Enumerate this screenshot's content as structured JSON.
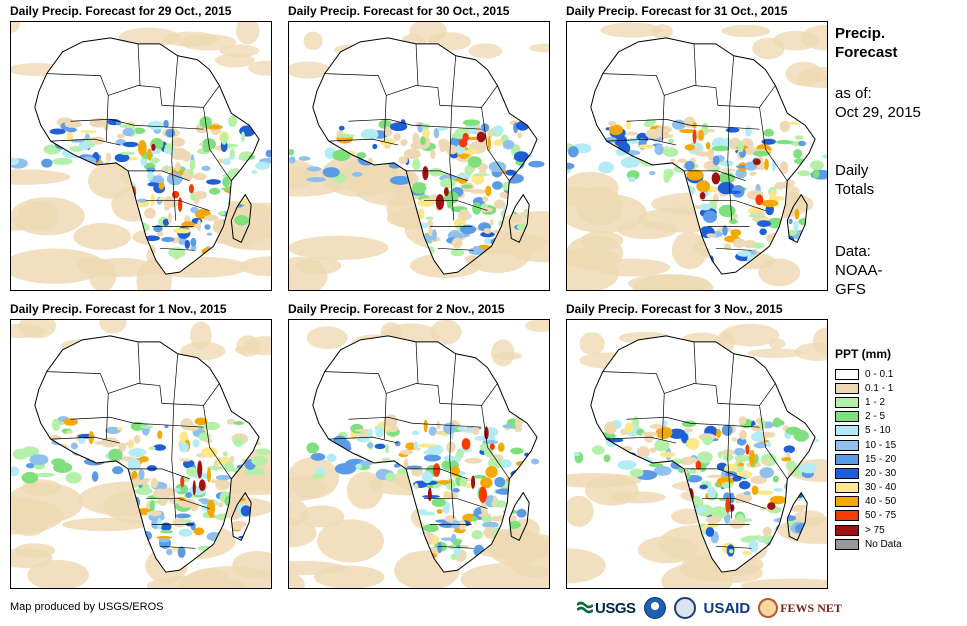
{
  "panels": [
    {
      "title": "Daily Precip. Forecast for 29 Oct., 2015",
      "seed": 11
    },
    {
      "title": "Daily Precip. Forecast for 30 Oct., 2015",
      "seed": 23
    },
    {
      "title": "Daily Precip. Forecast for 31 Oct., 2015",
      "seed": 37
    },
    {
      "title": "Daily Precip. Forecast for 1 Nov., 2015",
      "seed": 41
    },
    {
      "title": "Daily Precip. Forecast for 2 Nov., 2015",
      "seed": 53
    },
    {
      "title": "Daily Precip. Forecast for 3 Nov., 2015",
      "seed": 67
    }
  ],
  "side": {
    "title_line1": "Precip.",
    "title_line2": "Forecast",
    "asof_label": "as of:",
    "asof_date": "Oct 29, 2015",
    "totals_line1": "Daily",
    "totals_line2": "Totals",
    "data_label": "Data:",
    "data_line1": "NOAA-",
    "data_line2": "GFS"
  },
  "legend": {
    "title": "PPT (mm)",
    "items": [
      {
        "label": "0 - 0.1",
        "color": "#ffffff"
      },
      {
        "label": "0.1 - 1",
        "color": "#efd9b4"
      },
      {
        "label": "1 - 2",
        "color": "#b4f0a8"
      },
      {
        "label": "2 - 5",
        "color": "#7de07d"
      },
      {
        "label": "5 - 10",
        "color": "#b3ecf5"
      },
      {
        "label": "10 - 15",
        "color": "#8fc0ee"
      },
      {
        "label": "15 - 20",
        "color": "#5b9be6"
      },
      {
        "label": "20 - 30",
        "color": "#1f5fd6"
      },
      {
        "label": "30 - 40",
        "color": "#fbe88a"
      },
      {
        "label": "40 - 50",
        "color": "#f5a800"
      },
      {
        "label": "50 - 75",
        "color": "#f53c00"
      },
      {
        "label": "> 75",
        "color": "#a01010"
      },
      {
        "label": "No Data",
        "color": "#999999"
      }
    ]
  },
  "footer": {
    "credit": "Map produced by USGS/EROS"
  },
  "logos": {
    "usgs": "USGS",
    "usaid": "USAID",
    "fews": "FEWS NET"
  }
}
